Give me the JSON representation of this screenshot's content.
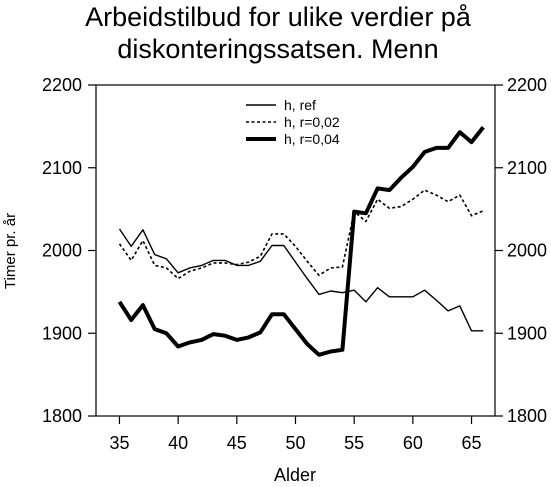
{
  "chart_data": {
    "type": "line",
    "title_lines": [
      "Arbeidstilbud for ulike verdier på",
      "diskonteringssatsen. Menn"
    ],
    "xlabel": "Alder",
    "ylabel": "Timer pr. år",
    "xlim": [
      33,
      67
    ],
    "ylim": [
      1800,
      2200
    ],
    "x_ticks": [
      35,
      40,
      45,
      50,
      55,
      60,
      65
    ],
    "y_ticks": [
      1800,
      1900,
      2000,
      2100,
      2200
    ],
    "grid": false,
    "legend_position": "top-center",
    "x": [
      35,
      36,
      37,
      38,
      39,
      40,
      41,
      42,
      43,
      44,
      45,
      46,
      47,
      48,
      49,
      50,
      51,
      52,
      53,
      54,
      55,
      56,
      57,
      58,
      59,
      60,
      61,
      62,
      63,
      64,
      65,
      66
    ],
    "series": [
      {
        "name": "h, ref",
        "style": "solid",
        "color": "#000000",
        "values": [
          2026,
          2005,
          2025,
          1995,
          1990,
          1973,
          1979,
          1982,
          1988,
          1988,
          1982,
          1982,
          1987,
          2006,
          2006,
          1986,
          1966,
          1947,
          1951,
          1949,
          1952,
          1938,
          1955,
          1944,
          1944,
          1944,
          1952,
          1940,
          1927,
          1933,
          1903,
          1903
        ]
      },
      {
        "name": "h, r=0,02",
        "style": "dotted",
        "color": "#000000",
        "values": [
          2008,
          1988,
          2012,
          1982,
          1979,
          1966,
          1975,
          1979,
          1985,
          1985,
          1983,
          1986,
          1993,
          2020,
          2020,
          2005,
          1987,
          1970,
          1979,
          1980,
          2047,
          2035,
          2062,
          2051,
          2053,
          2062,
          2073,
          2067,
          2059,
          2067,
          2042,
          2048
        ]
      },
      {
        "name": "h, r=0,04",
        "style": "solid-thick",
        "color": "#000000",
        "values": [
          1938,
          1916,
          1934,
          1905,
          1900,
          1884,
          1889,
          1892,
          1899,
          1897,
          1892,
          1895,
          1901,
          1923,
          1923,
          1905,
          1887,
          1874,
          1878,
          1880,
          2047,
          2045,
          2075,
          2073,
          2088,
          2101,
          2119,
          2124,
          2124,
          2143,
          2131,
          2149
        ]
      }
    ]
  }
}
